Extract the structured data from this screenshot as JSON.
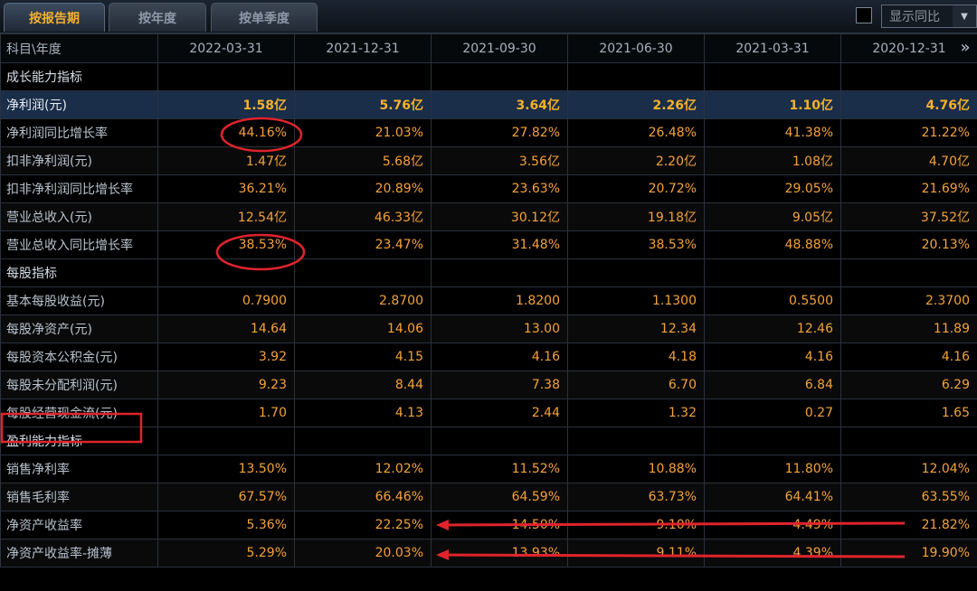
{
  "tabs": [
    {
      "label": "按报告期",
      "active": true
    },
    {
      "label": "按年度",
      "active": false
    },
    {
      "label": "按单季度",
      "active": false
    }
  ],
  "yoy_toggle": {
    "label": "显示同比"
  },
  "header": {
    "first_col": "科目\\年度",
    "dates": [
      "2022-03-31",
      "2021-12-31",
      "2021-09-30",
      "2021-06-30",
      "2021-03-31",
      "2020-12-31"
    ]
  },
  "rows": [
    {
      "type": "section",
      "label": "成长能力指标",
      "values": [
        "",
        "",
        "",
        "",
        "",
        ""
      ]
    },
    {
      "type": "highlight",
      "label": "净利润(元)",
      "values": [
        "1.58亿",
        "5.76亿",
        "3.64亿",
        "2.26亿",
        "1.10亿",
        "4.76亿"
      ]
    },
    {
      "type": "data",
      "label": "净利润同比增长率",
      "values": [
        "44.16%",
        "21.03%",
        "27.82%",
        "26.48%",
        "41.38%",
        "21.22%"
      ]
    },
    {
      "type": "data",
      "label": "扣非净利润(元)",
      "values": [
        "1.47亿",
        "5.68亿",
        "3.56亿",
        "2.20亿",
        "1.08亿",
        "4.70亿"
      ]
    },
    {
      "type": "data",
      "label": "扣非净利润同比增长率",
      "values": [
        "36.21%",
        "20.89%",
        "23.63%",
        "20.72%",
        "29.05%",
        "21.69%"
      ]
    },
    {
      "type": "data",
      "label": "营业总收入(元)",
      "values": [
        "12.54亿",
        "46.33亿",
        "30.12亿",
        "19.18亿",
        "9.05亿",
        "37.52亿"
      ]
    },
    {
      "type": "data",
      "label": "营业总收入同比增长率",
      "values": [
        "38.53%",
        "23.47%",
        "31.48%",
        "38.53%",
        "48.88%",
        "20.13%"
      ]
    },
    {
      "type": "section",
      "label": "每股指标",
      "values": [
        "",
        "",
        "",
        "",
        "",
        ""
      ]
    },
    {
      "type": "data",
      "label": "基本每股收益(元)",
      "values": [
        "0.7900",
        "2.8700",
        "1.8200",
        "1.1300",
        "0.5500",
        "2.3700"
      ]
    },
    {
      "type": "data",
      "label": "每股净资产(元)",
      "values": [
        "14.64",
        "14.06",
        "13.00",
        "12.34",
        "12.46",
        "11.89"
      ]
    },
    {
      "type": "data",
      "label": "每股资本公积金(元)",
      "values": [
        "3.92",
        "4.15",
        "4.16",
        "4.18",
        "4.16",
        "4.16"
      ]
    },
    {
      "type": "data",
      "label": "每股未分配利润(元)",
      "values": [
        "9.23",
        "8.44",
        "7.38",
        "6.70",
        "6.84",
        "6.29"
      ]
    },
    {
      "type": "data",
      "label": "每股经营现金流(元)",
      "values": [
        "1.70",
        "4.13",
        "2.44",
        "1.32",
        "0.27",
        "1.65"
      ]
    },
    {
      "type": "section",
      "label": "盈利能力指标",
      "values": [
        "",
        "",
        "",
        "",
        "",
        ""
      ]
    },
    {
      "type": "data",
      "label": "销售净利率",
      "values": [
        "13.50%",
        "12.02%",
        "11.52%",
        "10.88%",
        "11.80%",
        "12.04%"
      ]
    },
    {
      "type": "data",
      "label": "销售毛利率",
      "values": [
        "67.57%",
        "66.46%",
        "64.59%",
        "63.73%",
        "64.41%",
        "63.55%"
      ]
    },
    {
      "type": "data",
      "label": "净资产收益率",
      "values": [
        "5.36%",
        "22.25%",
        "14.50%",
        "9.10%",
        "4.49%",
        "21.82%"
      ]
    },
    {
      "type": "data",
      "label": "净资产收益率-摊薄",
      "values": [
        "5.29%",
        "20.03%",
        "13.93%",
        "9.11%",
        "4.39%",
        "19.90%"
      ]
    }
  ],
  "scroll_glyph": "»",
  "annotation_color": "#e0242c"
}
